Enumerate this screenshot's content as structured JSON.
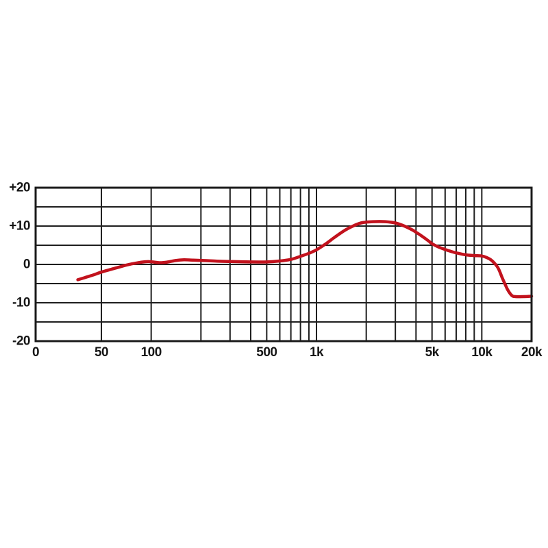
{
  "chart_data": {
    "type": "line",
    "description": "frequency-response-curve",
    "x_axis": {
      "scale": "log",
      "xlim": [
        20,
        20000
      ],
      "tick_labels": [
        {
          "label": "0",
          "freq": 20
        },
        {
          "label": "50",
          "freq": 50
        },
        {
          "label": "100",
          "freq": 100
        },
        {
          "label": "500",
          "freq": 500
        },
        {
          "label": "1k",
          "freq": 1000
        },
        {
          "label": "5k",
          "freq": 5000
        },
        {
          "label": "10k",
          "freq": 10000
        },
        {
          "label": "20k",
          "freq": 20000
        }
      ],
      "gridline_freqs": [
        50,
        100,
        200,
        300,
        400,
        500,
        600,
        700,
        800,
        900,
        1000,
        2000,
        3000,
        4000,
        5000,
        6000,
        7000,
        8000,
        9000,
        10000
      ]
    },
    "y_axis": {
      "ylim": [
        -20,
        20
      ],
      "gridline_step": 5,
      "tick_labels": [
        {
          "label": "+20",
          "value": 20
        },
        {
          "label": "+10",
          "value": 10
        },
        {
          "label": "0",
          "value": 0
        },
        {
          "label": "-10",
          "value": -10
        },
        {
          "label": "-20",
          "value": -20
        }
      ]
    },
    "grid": true,
    "legend": "none",
    "colors": {
      "curve": "#c2121d",
      "grid": "#1e1e1e",
      "frame": "#1a1a1a",
      "text": "#161616",
      "background": "#ffffff"
    },
    "series": [
      {
        "name": "frequency-response",
        "points": [
          [
            36,
            -4
          ],
          [
            40,
            -3.4
          ],
          [
            45,
            -2.7
          ],
          [
            50,
            -2
          ],
          [
            57,
            -1.3
          ],
          [
            64,
            -0.7
          ],
          [
            72,
            -0.1
          ],
          [
            82,
            0.4
          ],
          [
            92,
            0.7
          ],
          [
            100,
            0.7
          ],
          [
            112,
            0.45
          ],
          [
            125,
            0.6
          ],
          [
            140,
            1.0
          ],
          [
            158,
            1.2
          ],
          [
            180,
            1.1
          ],
          [
            210,
            1.0
          ],
          [
            250,
            0.85
          ],
          [
            300,
            0.75
          ],
          [
            400,
            0.65
          ],
          [
            500,
            0.65
          ],
          [
            600,
            0.9
          ],
          [
            700,
            1.3
          ],
          [
            800,
            2.1
          ],
          [
            900,
            2.9
          ],
          [
            1000,
            3.8
          ],
          [
            1150,
            5.5
          ],
          [
            1300,
            7.2
          ],
          [
            1500,
            9.0
          ],
          [
            1700,
            10.2
          ],
          [
            1900,
            10.9
          ],
          [
            2200,
            11.15
          ],
          [
            2600,
            11.15
          ],
          [
            3000,
            10.8
          ],
          [
            3400,
            10.0
          ],
          [
            3800,
            9.0
          ],
          [
            4000,
            8.4
          ],
          [
            4400,
            7.2
          ],
          [
            4800,
            6.0
          ],
          [
            5000,
            5.4
          ],
          [
            5500,
            4.5
          ],
          [
            6000,
            3.9
          ],
          [
            6500,
            3.4
          ],
          [
            7000,
            3.0
          ],
          [
            8000,
            2.5
          ],
          [
            9000,
            2.3
          ],
          [
            10000,
            2.2
          ],
          [
            10700,
            1.8
          ],
          [
            11500,
            1.0
          ],
          [
            12500,
            -0.8
          ],
          [
            13300,
            -3.5
          ],
          [
            14300,
            -6.5
          ],
          [
            15200,
            -8.1
          ],
          [
            16000,
            -8.4
          ],
          [
            18000,
            -8.4
          ],
          [
            20000,
            -8.3
          ]
        ]
      }
    ]
  }
}
